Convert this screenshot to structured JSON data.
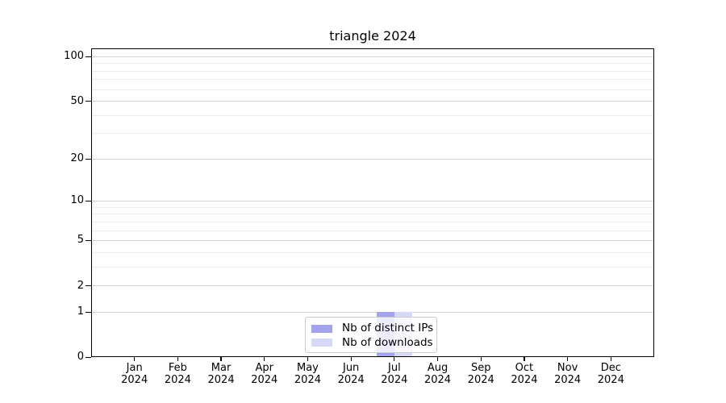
{
  "chart_data": {
    "type": "bar",
    "title": "triangle 2024",
    "categories": [
      "Jan",
      "Feb",
      "Mar",
      "Apr",
      "May",
      "Jun",
      "Jul",
      "Aug",
      "Sep",
      "Oct",
      "Nov",
      "Dec"
    ],
    "year_label": "2024",
    "series": [
      {
        "name": "Nb of distinct IPs",
        "color": "#a4a4ee",
        "values": [
          0,
          0,
          0,
          0,
          0,
          0,
          1,
          0,
          0,
          0,
          0,
          0
        ]
      },
      {
        "name": "Nb of downloads",
        "color": "#d7d7f6",
        "values": [
          0,
          0,
          0,
          0,
          0,
          0,
          1,
          0,
          0,
          0,
          0,
          0
        ]
      }
    ],
    "yscale": "log1p",
    "ylim": [
      0,
      114
    ],
    "y_major_ticks": [
      0,
      1,
      2,
      5,
      10,
      20,
      50,
      100
    ],
    "y_minor_gridlines": [
      3,
      4,
      6,
      7,
      8,
      9,
      30,
      40,
      60,
      70,
      80,
      90
    ],
    "grid": "horizontal",
    "legend_position": "lower-center"
  },
  "colors": {
    "background": "#ffffff",
    "spine": "#000000",
    "grid_major": "#d2d2d2",
    "grid_minor": "#ececec",
    "text": "#000000",
    "legend_border": "#cccccc"
  }
}
